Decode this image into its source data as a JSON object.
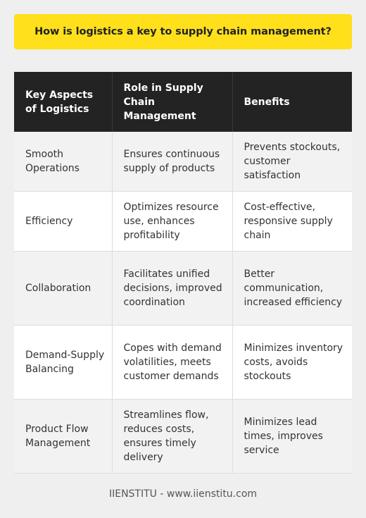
{
  "title": "How is logistics a key to supply chain management?",
  "table": {
    "headers": [
      "Key Aspects of Logistics",
      "Role in Supply Chain Management",
      "Benefits"
    ],
    "rows": [
      [
        "Smooth Operations",
        "Ensures continuous supply of products",
        "Prevents stockouts, customer satisfaction"
      ],
      [
        "Efficiency",
        "Optimizes resource use, enhances profitability",
        "Cost-effective, responsive supply chain"
      ],
      [
        "Collaboration",
        "Facilitates unified decisions, improved coordination",
        "Better communication, increased efficiency"
      ],
      [
        "Demand-Supply Balancing",
        "Copes with demand volatilities, meets customer demands",
        "Minimizes inventory costs, avoids stockouts"
      ],
      [
        "Product Flow Management",
        "Streamlines flow, reduces costs, ensures timely delivery",
        "Minimizes lead times, improves service"
      ]
    ]
  },
  "footer": "IIENSTITU - www.iienstitu.com",
  "colors": {
    "title_bg": "#ffe01b",
    "header_bg": "#232323",
    "page_bg": "#efefef"
  }
}
